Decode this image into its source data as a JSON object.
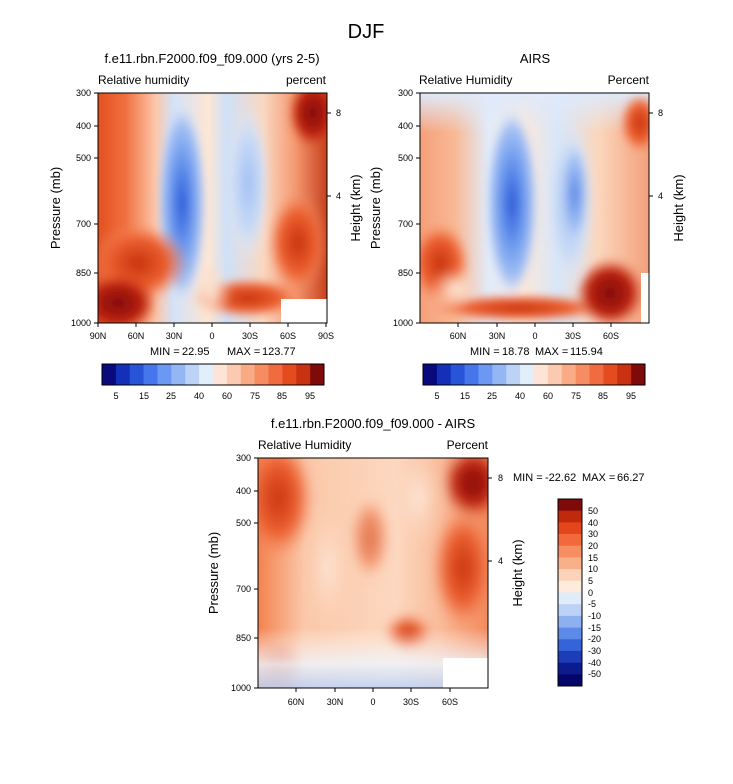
{
  "figure_title": "DJF",
  "chart_data": [
    {
      "type": "contour",
      "title": "f.e11.rbn.F2000.f09_f09.000 (yrs 2-5)",
      "subtitle_left": "Relative humidity",
      "subtitle_right": "percent",
      "ylabel": "Pressure (mb)",
      "ylabel_right": "Height (km)",
      "yticks": [
        "300",
        "400",
        "500",
        "700",
        "850",
        "1000"
      ],
      "yticks_right": [
        "8",
        "4"
      ],
      "xticks": [
        "90N",
        "60N",
        "30N",
        "0",
        "30S",
        "60S",
        "90S"
      ],
      "min_label": "MIN =",
      "min": "22.95",
      "max_label": "MAX =",
      "max": "123.77",
      "colorbar_labels": [
        "5",
        "15",
        "25",
        "40",
        "60",
        "75",
        "85",
        "95"
      ]
    },
    {
      "type": "contour",
      "title": "AIRS",
      "subtitle_left": "Relative Humidity",
      "subtitle_right": "Percent",
      "ylabel": "Pressure (mb)",
      "ylabel_right": "Height (km)",
      "yticks": [
        "300",
        "400",
        "500",
        "700",
        "850",
        "1000"
      ],
      "yticks_right": [
        "8",
        "4"
      ],
      "xticks": [
        "60N",
        "30N",
        "0",
        "30S",
        "60S"
      ],
      "min_label": "MIN =",
      "min": "18.78",
      "max_label": "MAX =",
      "max": "115.94",
      "colorbar_labels": [
        "5",
        "15",
        "25",
        "40",
        "60",
        "75",
        "85",
        "95"
      ]
    },
    {
      "type": "contour",
      "title": "f.e11.rbn.F2000.f09_f09.000 - AIRS",
      "subtitle_left": "Relative Humidity",
      "subtitle_right": "Percent",
      "ylabel": "Pressure (mb)",
      "ylabel_right": "Height (km)",
      "yticks": [
        "300",
        "400",
        "500",
        "700",
        "850",
        "1000"
      ],
      "yticks_right": [
        "8",
        "4"
      ],
      "xticks": [
        "60N",
        "30N",
        "0",
        "30S",
        "60S"
      ],
      "min_label": "MIN =",
      "min": "-22.62",
      "max_label": "MAX =",
      "max": "66.27",
      "colorbar_labels": [
        "50",
        "40",
        "30",
        "20",
        "15",
        "10",
        "5",
        "0",
        "-5",
        "-10",
        "-15",
        "-20",
        "-30",
        "-40",
        "-50"
      ]
    }
  ],
  "colors": {
    "hum_scale": [
      "#0a0a7e",
      "#1430b8",
      "#2854d8",
      "#4676ec",
      "#6a98f2",
      "#94b6f4",
      "#bcd2f6",
      "#e2eefa",
      "#fde4d6",
      "#fccab0",
      "#f9ab86",
      "#f58c62",
      "#f06c40",
      "#e44c20",
      "#c83210",
      "#7e0a0a"
    ],
    "diff_scale": [
      "#7e0a0a",
      "#c02a0a",
      "#e4461c",
      "#f26a3c",
      "#f68e62",
      "#f9b08a",
      "#fcd2b8",
      "#fdebdc",
      "#e0ecfa",
      "#bcd2f6",
      "#8cb0f0",
      "#5c8ae8",
      "#3464d8",
      "#1c3cb8",
      "#0c1c8e",
      "#06066a"
    ]
  }
}
